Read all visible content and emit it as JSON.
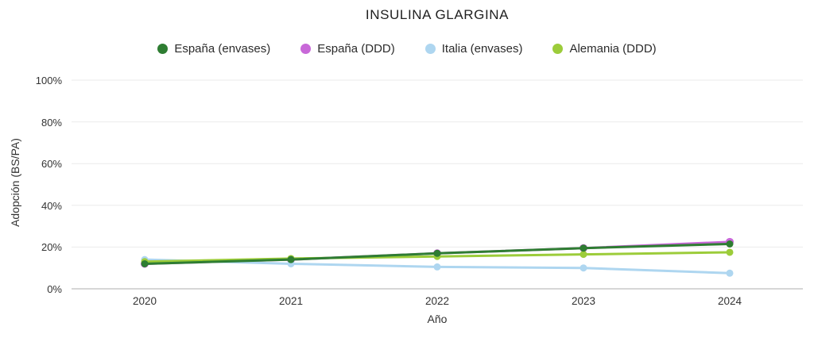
{
  "title": "INSULINA GLARGINA",
  "chart_data": {
    "type": "line",
    "title": "INSULINA GLARGINA",
    "xlabel": "Año",
    "ylabel": "Adopción (BS/PA)",
    "x": [
      "2020",
      "2021",
      "2022",
      "2023",
      "2024"
    ],
    "ylim": [
      0,
      100
    ],
    "grid": true,
    "legend_position": "top",
    "y_ticks": [
      {
        "value": 0,
        "label": "0%"
      },
      {
        "value": 20,
        "label": "20%"
      },
      {
        "value": 40,
        "label": "40%"
      },
      {
        "value": 60,
        "label": "60%"
      },
      {
        "value": 80,
        "label": "80%"
      },
      {
        "value": 100,
        "label": "100%"
      }
    ],
    "series": [
      {
        "name": "España (envases)",
        "color": "#2e7d32",
        "values": [
          12,
          14,
          17,
          19.5,
          21.5
        ]
      },
      {
        "name": "España (DDD)",
        "color": "#c868d8",
        "values": [
          12,
          14,
          17,
          19.5,
          22.5
        ]
      },
      {
        "name": "Italia (envases)",
        "color": "#aed6f0",
        "values": [
          14,
          12,
          10.5,
          10,
          7.5
        ]
      },
      {
        "name": "Alemania (DDD)",
        "color": "#9ccc3a",
        "values": [
          13,
          14.5,
          15.5,
          16.5,
          17.5
        ]
      }
    ]
  },
  "colors": {
    "gridline": "#ebebeb",
    "axis_line": "#c9c9c9"
  }
}
